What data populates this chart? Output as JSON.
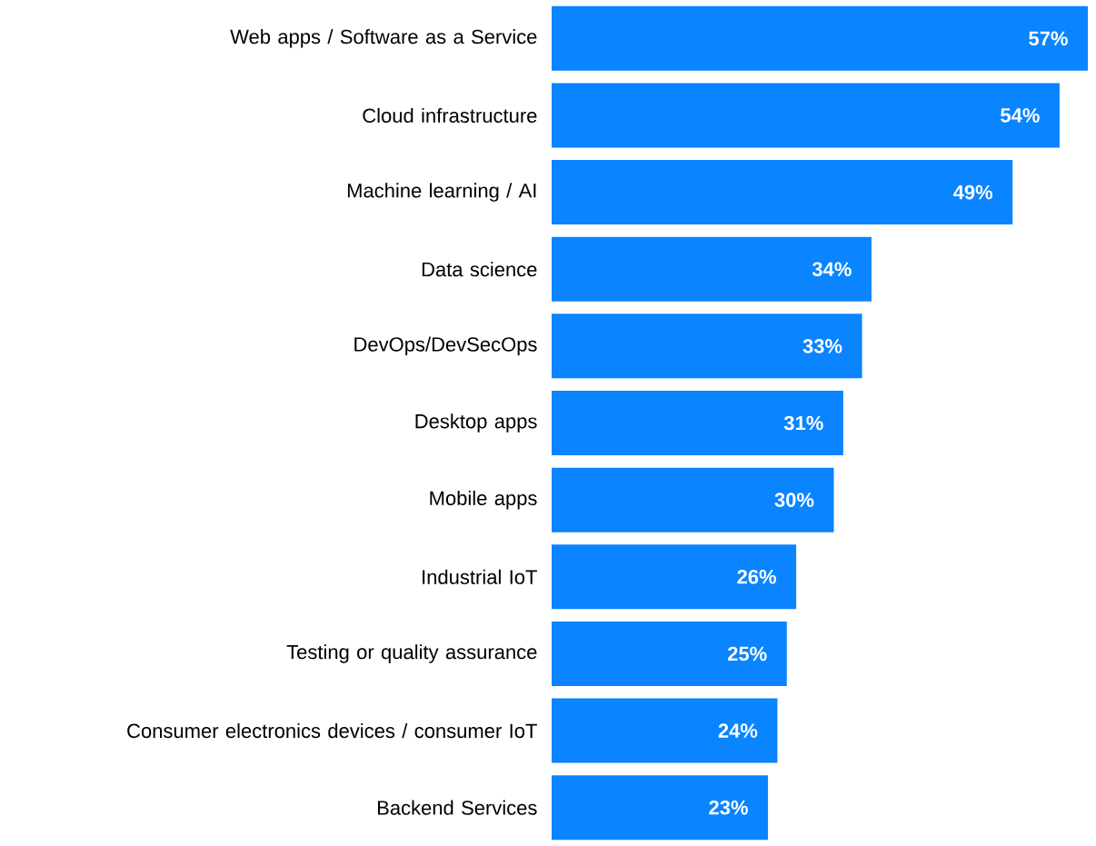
{
  "chart_data": {
    "type": "bar",
    "orientation": "horizontal",
    "categories": [
      "Web apps / Software as a Service",
      "Cloud infrastructure",
      "Machine learning / AI",
      "Data science",
      "DevOps/DevSecOps",
      "Desktop apps",
      "Mobile apps",
      "Industrial IoT",
      "Testing or quality assurance",
      "Consumer electronics devices / consumer IoT",
      "Backend Services"
    ],
    "values": [
      57,
      54,
      49,
      34,
      33,
      31,
      30,
      26,
      25,
      24,
      23
    ],
    "value_labels": [
      "57%",
      "54%",
      "49%",
      "34%",
      "33%",
      "31%",
      "30%",
      "26%",
      "25%",
      "24%",
      "23%"
    ],
    "color": "#0a84ff"
  }
}
